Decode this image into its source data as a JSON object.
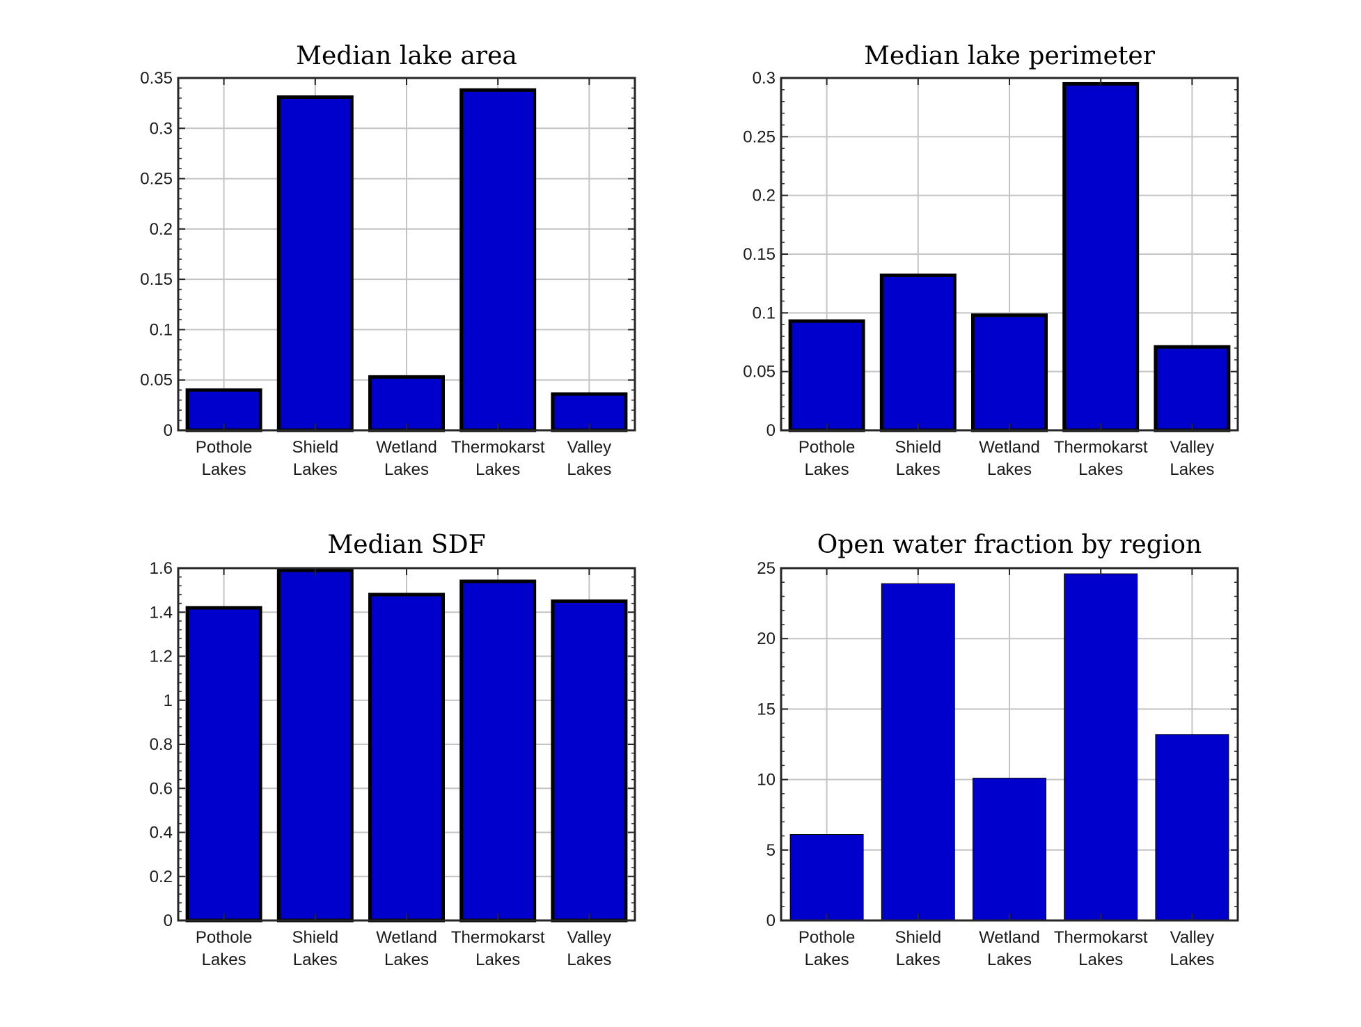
{
  "chart_data": [
    {
      "type": "bar",
      "title": "Median lake area",
      "xlabel": "",
      "ylabel": "",
      "categories": [
        "Pothole Lakes",
        "Shield Lakes",
        "Wetland Lakes",
        "Thermokarst Lakes",
        "Valley Lakes"
      ],
      "values": [
        0.04,
        0.331,
        0.053,
        0.338,
        0.036
      ],
      "ylim": [
        0,
        0.35
      ],
      "yticks": [
        0,
        0.05,
        0.1,
        0.15,
        0.2,
        0.25,
        0.3,
        0.35
      ],
      "ytick_labels": [
        "0",
        "0.05",
        "0.1",
        "0.15",
        "0.2",
        "0.25",
        "0.3",
        "0.35"
      ],
      "bar_color": "#0000cc",
      "edge_color": "#000000",
      "grid": true
    },
    {
      "type": "bar",
      "title": "Median lake perimeter",
      "xlabel": "",
      "ylabel": "",
      "categories": [
        "Pothole Lakes",
        "Shield Lakes",
        "Wetland Lakes",
        "Thermokarst Lakes",
        "Valley Lakes"
      ],
      "values": [
        0.093,
        0.132,
        0.098,
        0.295,
        0.071
      ],
      "ylim": [
        0,
        0.3
      ],
      "yticks": [
        0,
        0.05,
        0.1,
        0.15,
        0.2,
        0.25,
        0.3
      ],
      "ytick_labels": [
        "0",
        "0.05",
        "0.1",
        "0.15",
        "0.2",
        "0.25",
        "0.3"
      ],
      "bar_color": "#0000cc",
      "edge_color": "#000000",
      "grid": true
    },
    {
      "type": "bar",
      "title": "Median SDF",
      "xlabel": "",
      "ylabel": "",
      "categories": [
        "Pothole Lakes",
        "Shield Lakes",
        "Wetland Lakes",
        "Thermokarst Lakes",
        "Valley Lakes"
      ],
      "values": [
        1.42,
        1.59,
        1.48,
        1.54,
        1.45
      ],
      "ylim": [
        0,
        1.6
      ],
      "yticks": [
        0,
        0.2,
        0.4,
        0.6,
        0.8,
        1,
        1.2,
        1.4,
        1.6
      ],
      "ytick_labels": [
        "0",
        "0.2",
        "0.4",
        "0.6",
        "0.8",
        "1",
        "1.2",
        "1.4",
        "1.6"
      ],
      "bar_color": "#0000cc",
      "edge_color": "#000000",
      "grid": true
    },
    {
      "type": "bar",
      "title": "Open water fraction by region",
      "xlabel": "",
      "ylabel": "",
      "categories": [
        "Pothole Lakes",
        "Shield Lakes",
        "Wetland Lakes",
        "Thermokarst Lakes",
        "Valley Lakes"
      ],
      "values": [
        6.1,
        23.9,
        10.1,
        24.6,
        13.2
      ],
      "ylim": [
        0,
        25
      ],
      "yticks": [
        0,
        5,
        10,
        15,
        20,
        25
      ],
      "ytick_labels": [
        "0",
        "5",
        "10",
        "15",
        "20",
        "25"
      ],
      "bar_color": "#0000cc",
      "edge_color": "#000000",
      "grid": true
    }
  ],
  "category_labels": [
    [
      "Pothole",
      "Lakes"
    ],
    [
      "Shield",
      "Lakes"
    ],
    [
      "Wetland",
      "Lakes"
    ],
    [
      "Thermokarst",
      "Lakes"
    ],
    [
      "Valley",
      "Lakes"
    ]
  ]
}
